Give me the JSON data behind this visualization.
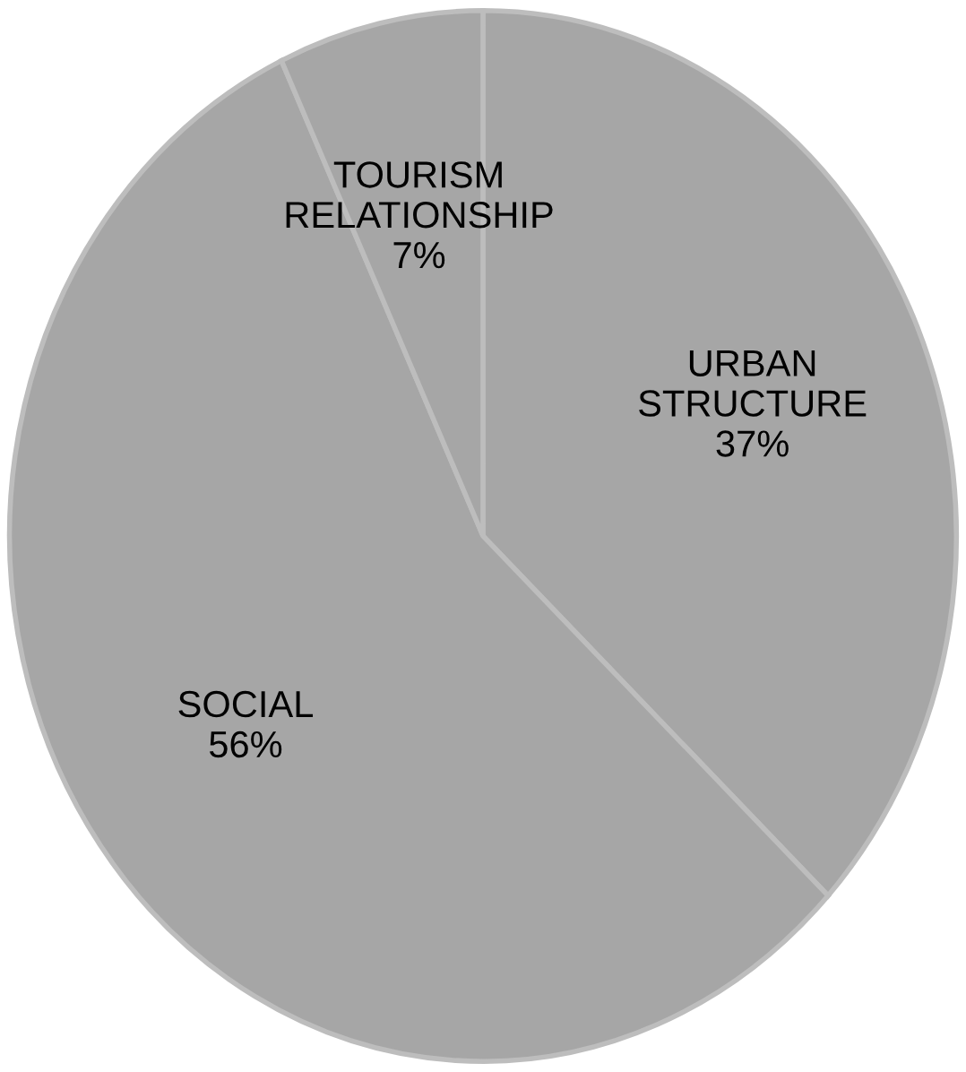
{
  "chart_data": {
    "type": "pie",
    "categories": [
      "URBAN STRUCTURE",
      "SOCIAL",
      "TOURISM RELATIONSHIP"
    ],
    "values": [
      37,
      56,
      7
    ],
    "value_labels": [
      "37%",
      "56%",
      "7%"
    ],
    "colors": [
      "#a6a6a6",
      "#a6a6a6",
      "#a6a6a6"
    ]
  }
}
